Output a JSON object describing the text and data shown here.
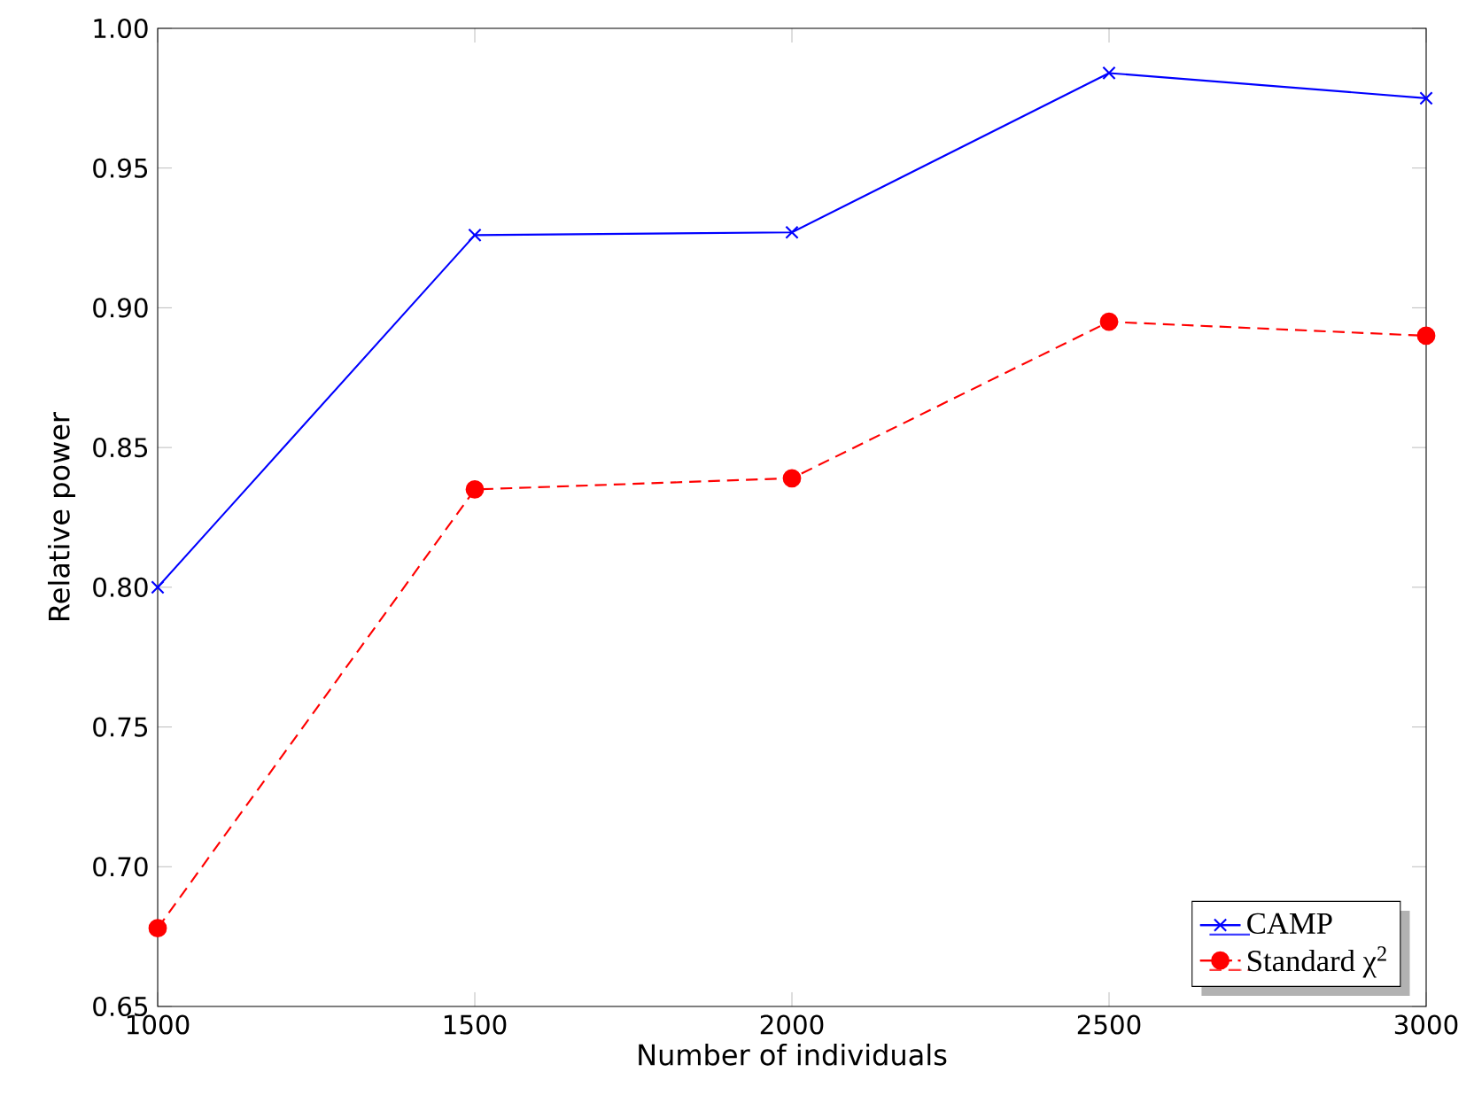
{
  "chart_data": {
    "type": "line",
    "xlabel": "Number of individuals",
    "ylabel": "Relative power",
    "x": [
      1000,
      1500,
      2000,
      2500,
      3000
    ],
    "series": [
      {
        "name": "CAMP",
        "color": "#0000ff",
        "marker": "cross",
        "line_style": "solid",
        "values": [
          0.8,
          0.926,
          0.927,
          0.984,
          0.975
        ]
      },
      {
        "name": "Standard χ$^{2}$",
        "color": "#ff0000",
        "marker": "circle",
        "line_style": "dashed",
        "values": [
          0.678,
          0.835,
          0.839,
          0.895,
          0.89
        ]
      }
    ],
    "xlim": [
      1000,
      3000
    ],
    "xticks": [
      1000,
      1500,
      2000,
      2500,
      3000
    ],
    "ylim": [
      0.65,
      1.0
    ],
    "yticks": [
      {
        "value": 0.65,
        "label": "0.65"
      },
      {
        "value": 0.7,
        "label": "0.70"
      },
      {
        "value": 0.75,
        "label": "0.75"
      },
      {
        "value": 0.8,
        "label": "0.80"
      },
      {
        "value": 0.85,
        "label": "0.85"
      },
      {
        "value": 0.9,
        "label": "0.90"
      },
      {
        "value": 0.95,
        "label": "0.95"
      },
      {
        "value": 1.0,
        "label": "1.00"
      }
    ],
    "legend": "bottom right"
  }
}
